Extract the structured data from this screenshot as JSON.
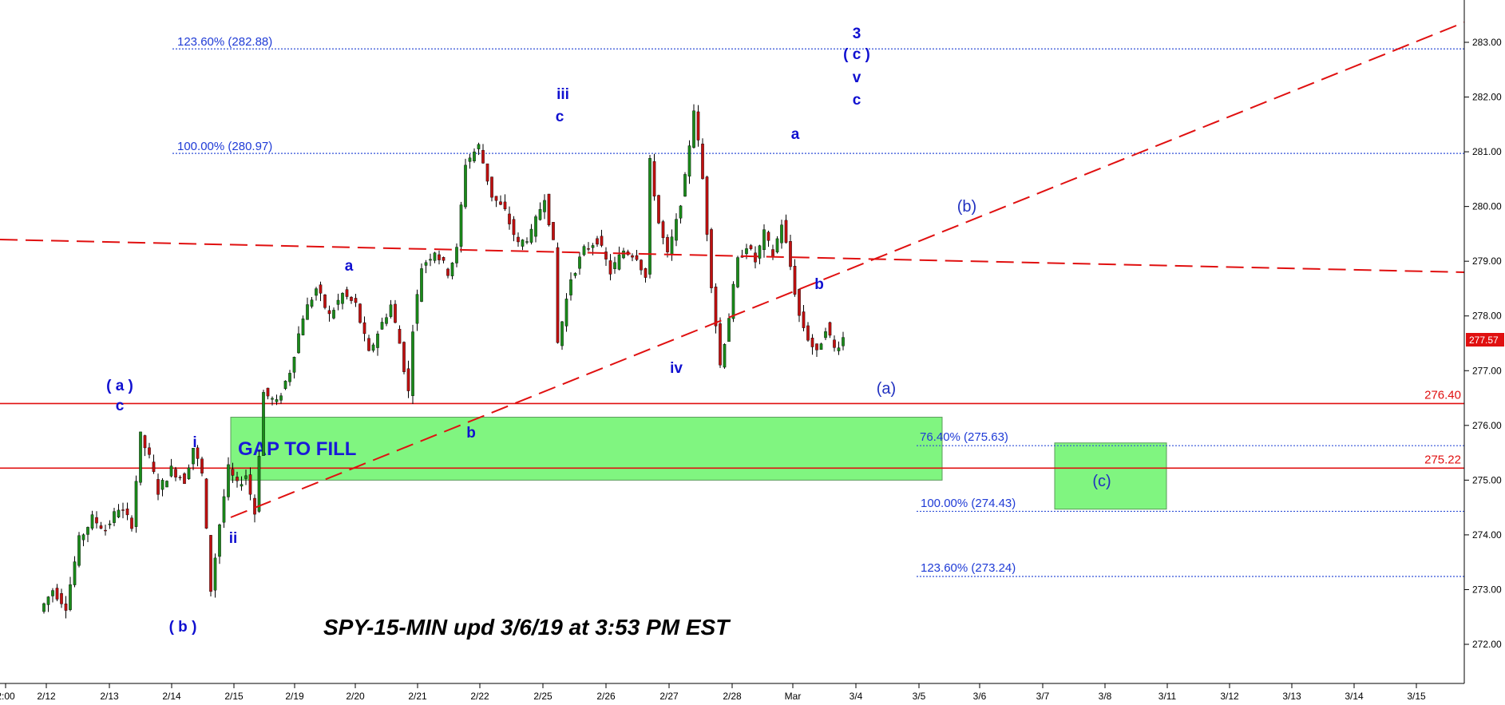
{
  "chart_data": {
    "type": "candlestick",
    "title": "SPY-15-MIN upd 3/6/19 at 3:53 PM EST",
    "ylim": [
      271.5,
      283.6
    ],
    "y_ticks": [
      "272.00",
      "273.00",
      "274.00",
      "275.00",
      "276.00",
      "277.00",
      "278.00",
      "279.00",
      "280.00",
      "281.00",
      "282.00",
      "283.00"
    ],
    "x_ticks": [
      "2:00",
      "2/12",
      "2/13",
      "2/14",
      "2/15",
      "2/19",
      "2/20",
      "2/21",
      "2/22",
      "2/25",
      "2/26",
      "2/27",
      "2/28",
      "Mar",
      "3/4",
      "3/5",
      "3/6",
      "3/7",
      "3/8",
      "3/11",
      "3/12",
      "3/13",
      "3/14",
      "3/15"
    ],
    "last_price": "277.57",
    "fib_levels": [
      {
        "label": "123.60% (282.88)",
        "value": 282.88
      },
      {
        "label": "100.00% (280.97)",
        "value": 280.97
      },
      {
        "label": "76.40% (275.63)",
        "value": 275.63
      },
      {
        "label": "100.00% (274.43)",
        "value": 274.43
      },
      {
        "label": "123.60% (273.24)",
        "value": 273.24
      }
    ],
    "horizontal_levels": [
      {
        "label": "276.40",
        "value": 276.4
      },
      {
        "label": "275.22",
        "value": 275.22
      }
    ],
    "zones": [
      {
        "label": "GAP TO FILL",
        "y_top": 276.15,
        "y_bottom": 275.0
      },
      {
        "label": "(c)",
        "y_top": 275.68,
        "y_bottom": 274.47
      }
    ],
    "wave_labels": [
      {
        "text": "( a )",
        "style": "bold"
      },
      {
        "text": "c",
        "style": "bold"
      },
      {
        "text": "i",
        "style": "bold"
      },
      {
        "text": "ii",
        "style": "bold"
      },
      {
        "text": "( b )",
        "style": "bold"
      },
      {
        "text": "a",
        "style": "bold"
      },
      {
        "text": "b",
        "style": "bold"
      },
      {
        "text": "iii",
        "style": "bold"
      },
      {
        "text": "c",
        "style": "bold"
      },
      {
        "text": "iv",
        "style": "bold"
      },
      {
        "text": "a",
        "style": "bold"
      },
      {
        "text": "b",
        "style": "bold"
      },
      {
        "text": "3",
        "style": "bold"
      },
      {
        "text": "( c )",
        "style": "bold"
      },
      {
        "text": "v",
        "style": "bold"
      },
      {
        "text": "c",
        "style": "bold"
      },
      {
        "text": "(a)",
        "style": "plain"
      },
      {
        "text": "(b)",
        "style": "plain"
      }
    ],
    "price_path": [
      [
        0,
        272.6
      ],
      [
        3,
        273.0
      ],
      [
        6,
        272.7
      ],
      [
        9,
        273.9
      ],
      [
        12,
        274.3
      ],
      [
        15,
        274.1
      ],
      [
        18,
        274.5
      ],
      [
        21,
        274.2
      ],
      [
        23,
        275.8
      ],
      [
        25,
        275.4
      ],
      [
        27,
        274.8
      ],
      [
        30,
        275.2
      ],
      [
        33,
        275.0
      ],
      [
        35,
        275.6
      ],
      [
        37,
        275.1
      ],
      [
        39,
        273.0
      ],
      [
        41,
        274.2
      ],
      [
        43,
        275.2
      ],
      [
        45,
        274.9
      ],
      [
        47,
        275.1
      ],
      [
        49,
        274.4
      ],
      [
        51,
        276.6
      ],
      [
        54,
        276.4
      ],
      [
        57,
        277.0
      ],
      [
        60,
        278.0
      ],
      [
        63,
        278.5
      ],
      [
        66,
        278.0
      ],
      [
        69,
        278.4
      ],
      [
        72,
        278.2
      ],
      [
        75,
        277.3
      ],
      [
        77,
        277.7
      ],
      [
        80,
        278.2
      ],
      [
        82,
        277.5
      ],
      [
        84,
        276.6
      ],
      [
        85,
        277.8
      ],
      [
        87,
        278.9
      ],
      [
        90,
        279.2
      ],
      [
        93,
        278.8
      ],
      [
        95,
        279.2
      ],
      [
        97,
        280.8
      ],
      [
        100,
        281.1
      ],
      [
        103,
        280.2
      ],
      [
        106,
        279.9
      ],
      [
        109,
        279.3
      ],
      [
        112,
        279.5
      ],
      [
        115,
        280.2
      ],
      [
        117,
        279.3
      ],
      [
        118,
        277.5
      ],
      [
        121,
        278.7
      ],
      [
        124,
        279.2
      ],
      [
        127,
        279.4
      ],
      [
        130,
        278.8
      ],
      [
        133,
        279.2
      ],
      [
        136,
        279.1
      ],
      [
        138,
        278.7
      ],
      [
        139,
        280.8
      ],
      [
        141,
        279.7
      ],
      [
        143,
        279.1
      ],
      [
        145,
        279.7
      ],
      [
        147,
        280.5
      ],
      [
        149,
        281.8
      ],
      [
        151,
        280.5
      ],
      [
        153,
        278.6
      ],
      [
        155,
        277.1
      ],
      [
        157,
        278.0
      ],
      [
        159,
        279.0
      ],
      [
        161,
        279.3
      ],
      [
        163,
        279.0
      ],
      [
        165,
        279.5
      ],
      [
        167,
        279.1
      ],
      [
        169,
        279.7
      ],
      [
        171,
        278.9
      ],
      [
        173,
        278.0
      ],
      [
        175,
        277.6
      ],
      [
        177,
        277.3
      ],
      [
        179,
        277.8
      ],
      [
        181,
        277.4
      ],
      [
        183,
        277.6
      ]
    ]
  }
}
